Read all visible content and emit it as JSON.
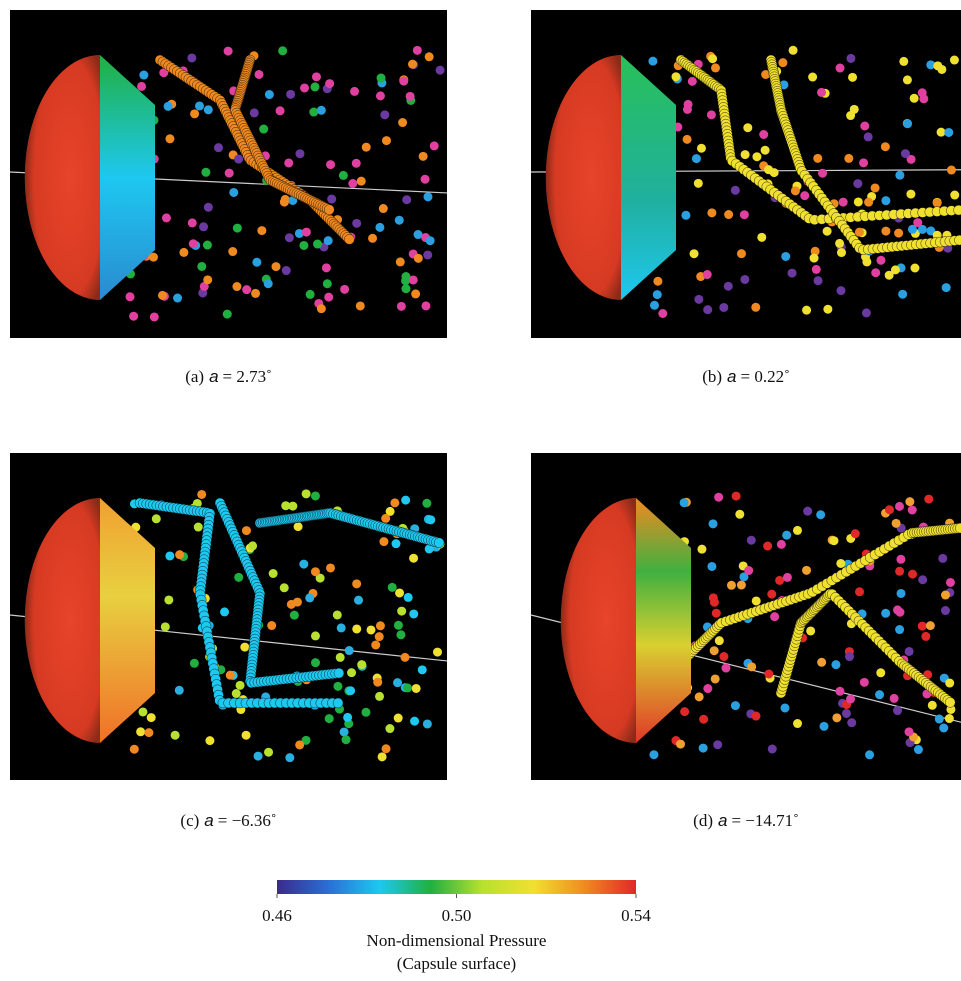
{
  "panels": [
    {
      "label": "(a)",
      "symbol": "a",
      "rest": "= 2.73˚"
    },
    {
      "label": "(b)",
      "symbol": "a",
      "rest": "= 0.22˚"
    },
    {
      "label": "(c)",
      "symbol": "a",
      "rest": "= −6.36˚"
    },
    {
      "label": "(d)",
      "symbol": "a",
      "rest": "= −14.71˚"
    }
  ],
  "colorbar": {
    "title": "Non-dimensional Pressure",
    "subtitle": "(Capsule surface)",
    "lim": [
      0.46,
      0.54
    ],
    "ticks": [
      0.46,
      {
        "value": 0.5,
        "label": "0.50"
      },
      0.54
    ],
    "colors": [
      "#3a2a8c",
      "#2a6fd6",
      "#1ec8f0",
      "#20b040",
      "#b8e030",
      "#f0e030",
      "#f08a20",
      "#e02828"
    ]
  }
}
